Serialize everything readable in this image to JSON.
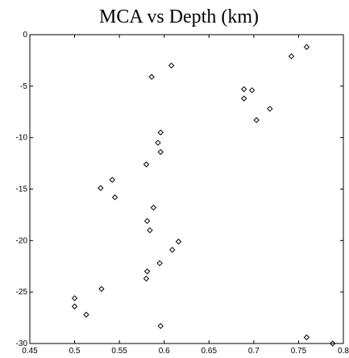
{
  "chart_data": {
    "type": "scatter",
    "title": "MCA vs Depth (km)",
    "xlabel": "",
    "ylabel": "",
    "xlim": [
      0.45,
      0.8
    ],
    "ylim": [
      -30,
      0
    ],
    "xticks": [
      0.45,
      0.5,
      0.55,
      0.6,
      0.65,
      0.7,
      0.75,
      0.8
    ],
    "xtick_labels": [
      "0.45",
      "0.5",
      "0.55",
      "0.6",
      "0.65",
      "0.7",
      "0.75",
      "0.8"
    ],
    "yticks": [
      0,
      -5,
      -10,
      -15,
      -20,
      -25,
      -30
    ],
    "ytick_labels": [
      "0",
      "-5",
      "-10",
      "-15",
      "-20",
      "-25",
      "-30"
    ],
    "grid": false,
    "marker": "diamond",
    "marker_color": "#000000",
    "series": [
      {
        "x": [
          0.759,
          0.742,
          0.608,
          0.586,
          0.689,
          0.698,
          0.689,
          0.718,
          0.703,
          0.596,
          0.593,
          0.596,
          0.58,
          0.542,
          0.529,
          0.545,
          0.588,
          0.581,
          0.584,
          0.616,
          0.609,
          0.595,
          0.581,
          0.58,
          0.53,
          0.5,
          0.5,
          0.513,
          0.596,
          0.759,
          0.788
        ],
        "y": [
          -1.2,
          -2.1,
          -3.0,
          -4.1,
          -5.3,
          -5.4,
          -6.2,
          -7.2,
          -8.3,
          -9.5,
          -10.5,
          -11.4,
          -12.6,
          -14.1,
          -14.9,
          -15.8,
          -16.8,
          -18.1,
          -19.0,
          -20.1,
          -20.9,
          -22.2,
          -23.0,
          -23.7,
          -24.7,
          -25.6,
          -26.4,
          -27.2,
          -28.3,
          -29.4,
          -30.0
        ]
      }
    ]
  }
}
